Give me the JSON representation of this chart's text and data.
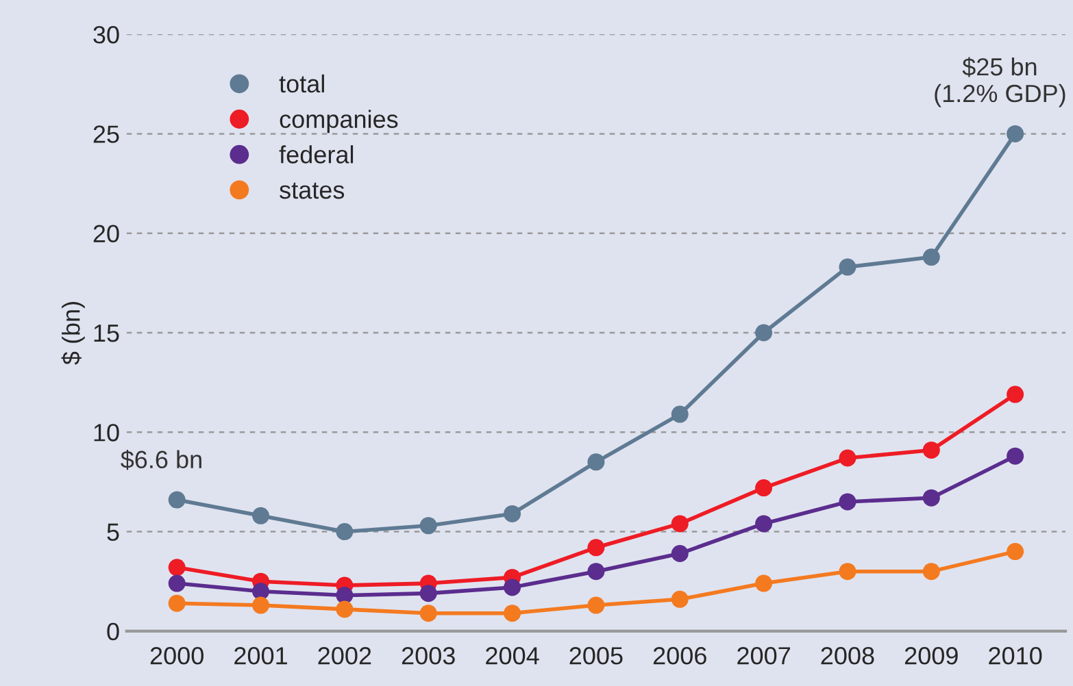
{
  "chart_data": {
    "type": "line",
    "ylabel": "$ (bn)",
    "categories": [
      "2000",
      "2001",
      "2002",
      "2003",
      "2004",
      "2005",
      "2006",
      "2007",
      "2008",
      "2009",
      "2010"
    ],
    "series": [
      {
        "name": "total",
        "color": "#5f7a93",
        "values": [
          6.6,
          5.8,
          5.0,
          5.3,
          5.9,
          8.5,
          10.9,
          15.0,
          18.3,
          18.8,
          25.0
        ]
      },
      {
        "name": "companies",
        "color": "#ee1c25",
        "values": [
          3.2,
          2.5,
          2.3,
          2.4,
          2.7,
          4.2,
          5.4,
          7.2,
          8.7,
          9.1,
          11.9
        ]
      },
      {
        "name": "federal",
        "color": "#5b2d8e",
        "values": [
          2.4,
          2.0,
          1.8,
          1.9,
          2.2,
          3.0,
          3.9,
          5.4,
          6.5,
          6.7,
          8.8
        ]
      },
      {
        "name": "states",
        "color": "#f47a20",
        "values": [
          1.4,
          1.3,
          1.1,
          0.9,
          0.9,
          1.3,
          1.6,
          2.4,
          3.0,
          3.0,
          4.0
        ]
      }
    ],
    "ylim": [
      0,
      30
    ],
    "yticks": [
      0,
      5,
      10,
      15,
      20,
      25,
      30
    ],
    "grid": "y",
    "legend": "top left",
    "marker": "circle",
    "line_style": "solid",
    "annotations": [
      {
        "text": "$6.6 bn",
        "x": "2000",
        "y": 6.6
      },
      {
        "text": "$25 bn\n(1.2% GDP)",
        "x": "2010",
        "y": 25.0
      }
    ]
  }
}
